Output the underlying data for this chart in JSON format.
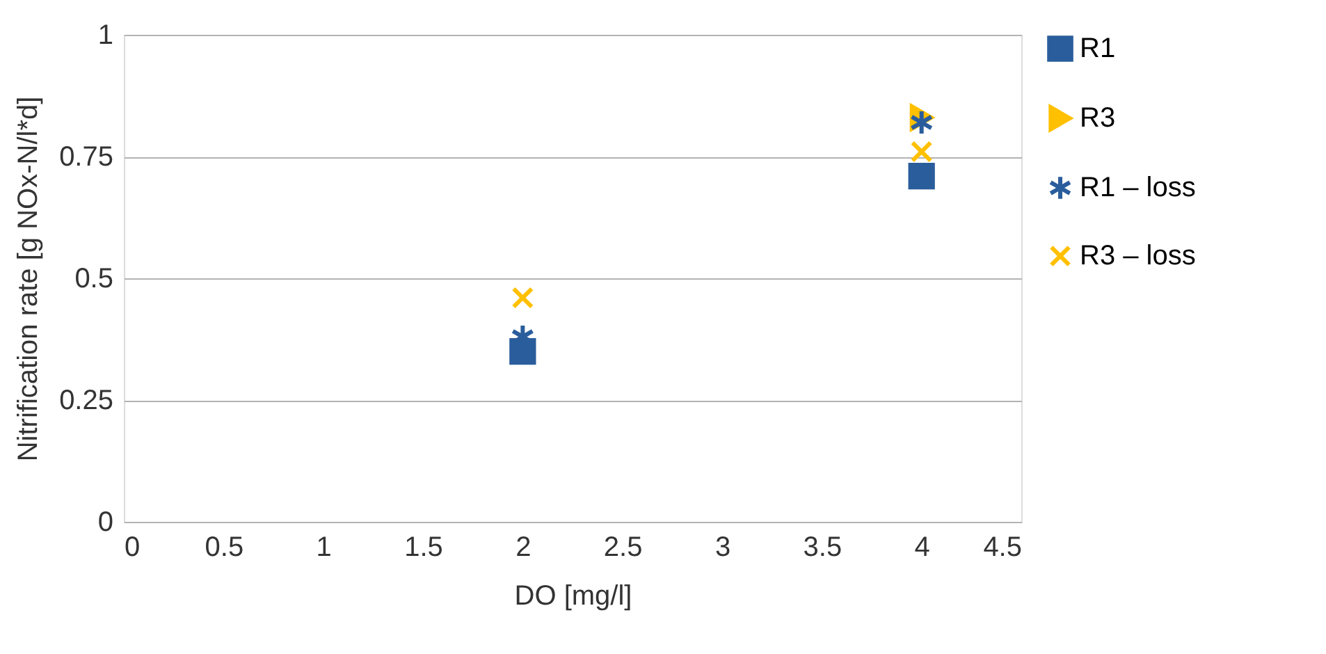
{
  "chart_data": {
    "type": "scatter",
    "xlabel": "DO [mg/l]",
    "ylabel": "Nitrification rate [g NOx-N/l*d]",
    "xlim": [
      0,
      4.5
    ],
    "xticks": [
      0,
      0.5,
      1,
      1.5,
      2,
      2.5,
      3,
      3.5,
      4,
      4.5
    ],
    "ylim": [
      0,
      1
    ],
    "yticks": [
      0,
      0.25,
      0.5,
      0.75,
      1
    ],
    "grid": "y",
    "legend": "right",
    "x": [
      2,
      4
    ],
    "series": [
      {
        "name": "R1",
        "color": "#2a5d9c",
        "marker": "square",
        "values": [
          0.35,
          0.71
        ]
      },
      {
        "name": "R3",
        "color": "#ffc000",
        "marker": "triangle",
        "x": [
          4
        ],
        "values": [
          0.83
        ]
      },
      {
        "name": "R1 – loss",
        "color": "#2a5d9c",
        "marker": "cross",
        "values": [
          0.38,
          0.82
        ]
      },
      {
        "name": "R3 – loss",
        "color": "#ffc000",
        "marker": "cross",
        "values": [
          0.46,
          0.76
        ]
      }
    ]
  }
}
